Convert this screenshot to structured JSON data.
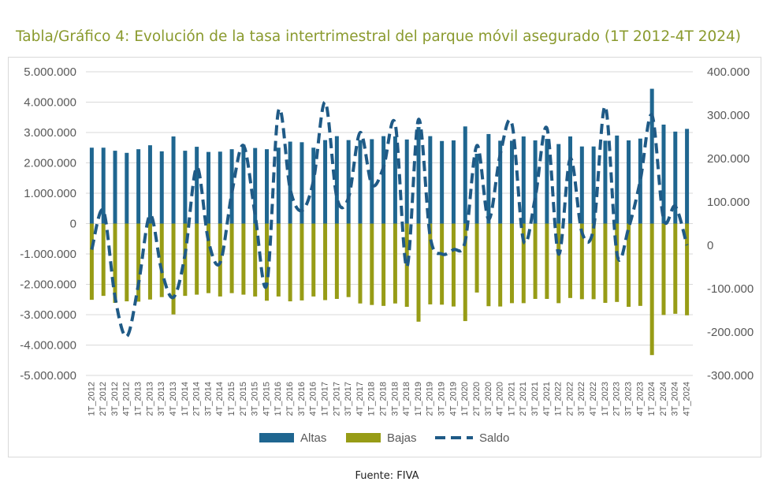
{
  "title": "Tabla/Gráfico 4: Evolución de la tasa intertrimestral del parque móvil asegurado (1T 2012-4T 2024)",
  "source": "Fuente: FIVA",
  "colors": {
    "altas": "#1f6690",
    "bajas": "#979c16",
    "saldo": "#1f5a86",
    "title": "#8a9a2e",
    "axis": "#595959",
    "grid": "#d9d9d9"
  },
  "chart_data": {
    "type": "bar",
    "title": "Tabla/Gráfico 4: Evolución de la tasa intertrimestral del parque móvil asegurado (1T 2012-4T 2024)",
    "legend_position": "bottom",
    "grid": true,
    "categories": [
      "1T_2012",
      "2T_2012",
      "3T_2012",
      "4T_2012",
      "1T_2013",
      "2T_2013",
      "3T_2013",
      "4T_2013",
      "1T_2014",
      "2T_2014",
      "3T_2014",
      "4T_2014",
      "1T_2015",
      "2T_2015",
      "3T_2015",
      "4T_2015",
      "1T_2016",
      "2T_2016",
      "3T_2016",
      "4T_2016",
      "1T_2017",
      "2T_2017",
      "3T_2017",
      "4T_2017",
      "1T_2018",
      "2T_2018",
      "3T_2018",
      "4T_2018",
      "1T_2019",
      "2T_2019",
      "3T_2019",
      "4T_2019",
      "1T_2020",
      "2T_2020",
      "3T_2020",
      "4T_2020",
      "1T_2021",
      "2T_2021",
      "3T_2021",
      "4T_2021",
      "1T_2022",
      "2T_2022",
      "3T_2022",
      "4T_2022",
      "1T_2023",
      "2T_2023",
      "3T_2023",
      "4T_2023",
      "1T_2024",
      "2T_2024",
      "3T_2024",
      "4T_2024"
    ],
    "y_left": {
      "range": [
        -5000000,
        5000000
      ],
      "ticks": [
        5000000,
        4000000,
        3000000,
        2000000,
        1000000,
        0,
        -1000000,
        -2000000,
        -3000000,
        -4000000,
        -5000000
      ],
      "tick_labels": [
        "5.000.000",
        "4.000.000",
        "3.000.000",
        "2.000.000",
        "1.000.000",
        "0",
        "-1.000.000",
        "-2.000.000",
        "-3.000.000",
        "-4.000.000",
        "-5.000.000"
      ]
    },
    "y_right": {
      "range": [
        -300000,
        400000
      ],
      "ticks": [
        400000,
        300000,
        200000,
        100000,
        0,
        -100000,
        -200000,
        -300000
      ],
      "tick_labels": [
        "400.000",
        "300.000",
        "200.000",
        "100.000",
        "0",
        "-100.000",
        "-200.000",
        "-300.000"
      ]
    },
    "series": [
      {
        "name": "Altas",
        "kind": "bar",
        "axis": "left",
        "values": [
          2500000,
          2500000,
          2400000,
          2330000,
          2450000,
          2580000,
          2380000,
          2870000,
          2400000,
          2530000,
          2360000,
          2370000,
          2450000,
          2600000,
          2490000,
          2450000,
          2500000,
          2700000,
          2680000,
          2500000,
          2750000,
          2880000,
          2750000,
          2750000,
          2780000,
          2880000,
          2870000,
          2770000,
          3180000,
          2880000,
          2720000,
          2740000,
          3200000,
          2300000,
          2950000,
          2730000,
          2730000,
          2870000,
          2740000,
          2790000,
          2620000,
          2870000,
          2540000,
          2540000,
          2730000,
          2900000,
          2740000,
          2800000,
          4440000,
          3260000,
          3030000,
          3120000
        ]
      },
      {
        "name": "Bajas",
        "kind": "bar",
        "axis": "left",
        "values": [
          -2510000,
          -2380000,
          -2610000,
          -2560000,
          -2570000,
          -2500000,
          -2420000,
          -2990000,
          -2380000,
          -2340000,
          -2290000,
          -2400000,
          -2290000,
          -2340000,
          -2400000,
          -2540000,
          -2400000,
          -2560000,
          -2530000,
          -2400000,
          -2520000,
          -2480000,
          -2420000,
          -2630000,
          -2680000,
          -2710000,
          -2630000,
          -2740000,
          -3230000,
          -2660000,
          -2670000,
          -2730000,
          -3210000,
          -2270000,
          -2720000,
          -2730000,
          -2620000,
          -2620000,
          -2480000,
          -2480000,
          -2620000,
          -2450000,
          -2490000,
          -2490000,
          -2610000,
          -2580000,
          -2740000,
          -2710000,
          -4330000,
          -3010000,
          -2970000,
          -3020000
        ]
      },
      {
        "name": "Saldo",
        "kind": "line",
        "axis": "right",
        "style": "dashed",
        "values": [
          -10000,
          80000,
          -120000,
          -210000,
          -90000,
          70000,
          -60000,
          -120000,
          -20000,
          180000,
          10000,
          -40000,
          120000,
          230000,
          70000,
          -90000,
          310000,
          130000,
          80000,
          150000,
          330000,
          110000,
          110000,
          260000,
          140000,
          180000,
          280000,
          -50000,
          290000,
          20000,
          -20000,
          -10000,
          10000,
          230000,
          60000,
          210000,
          280000,
          10000,
          110000,
          270000,
          -20000,
          200000,
          30000,
          40000,
          320000,
          -20000,
          40000,
          150000,
          300000,
          60000,
          90000,
          0
        ]
      }
    ]
  },
  "legend": [
    {
      "label": "Altas",
      "kind": "bar"
    },
    {
      "label": "Bajas",
      "kind": "bar"
    },
    {
      "label": "Saldo",
      "kind": "dashed-line"
    }
  ]
}
